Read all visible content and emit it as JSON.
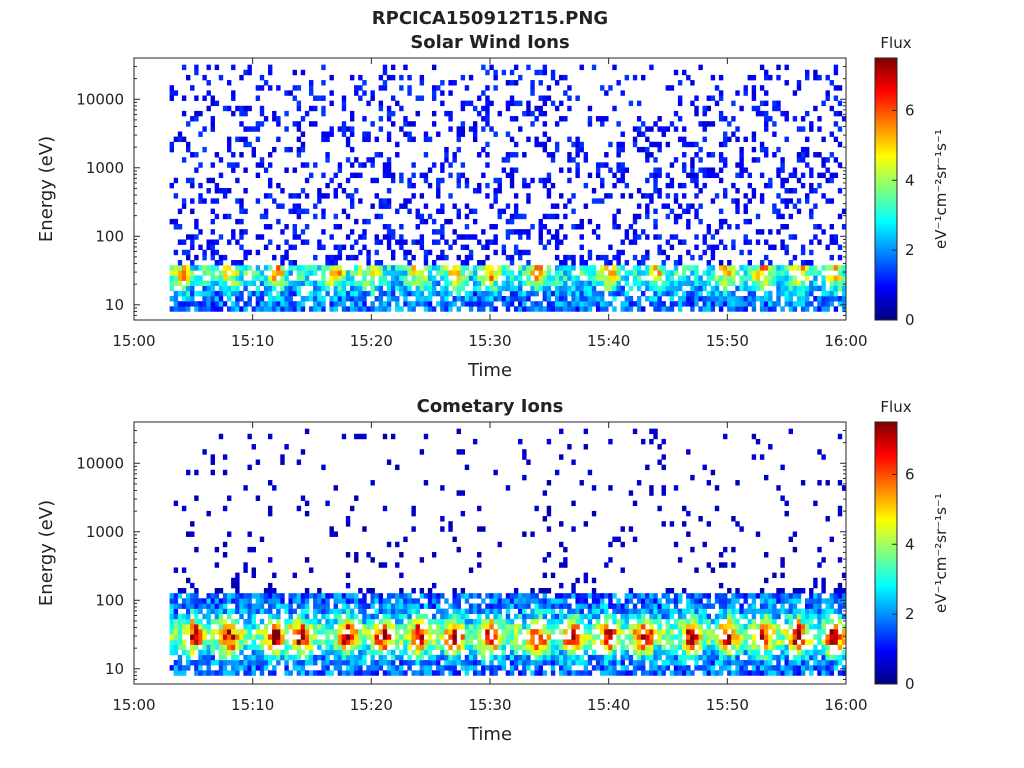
{
  "figure": {
    "title": "RPCICA150912T15.PNG"
  },
  "colorbar_colors": [
    "#00007f",
    "#0000ff",
    "#007fff",
    "#00ffff",
    "#7fff7f",
    "#ffff00",
    "#ff7f00",
    "#ff0000",
    "#7f0000"
  ],
  "chart_data": [
    {
      "type": "heatmap",
      "title": "Solar Wind Ions",
      "xlabel": "Time",
      "ylabel": "Energy (eV)",
      "x_ticks": [
        "15:00",
        "15:10",
        "15:20",
        "15:30",
        "15:40",
        "15:50",
        "16:00"
      ],
      "x_range": [
        "15:00",
        "16:00"
      ],
      "data_start": "15:03",
      "y_scale": "log",
      "y_ticks": [
        "10",
        "100",
        "1000",
        "10000"
      ],
      "y_range": [
        6,
        40000
      ],
      "colorbar": {
        "title": "Flux",
        "label": "eV⁻¹cm⁻²sr⁻¹s⁻¹",
        "ticks": [
          "0",
          "2",
          "4",
          "6"
        ],
        "range": [
          0,
          7.5
        ]
      },
      "features": {
        "low_energy_band_eV": [
          8,
          40
        ],
        "peak_flux_near_30eV": 4.5,
        "hot_times": [
          "15:04",
          "15:08",
          "15:12",
          "15:17",
          "15:20",
          "15:24",
          "15:27",
          "15:30",
          "15:34",
          "15:40",
          "15:44",
          "15:50",
          "15:53",
          "15:56",
          "15:59"
        ],
        "sparse_high_energy_flux": 1.0
      }
    },
    {
      "type": "heatmap",
      "title": "Cometary Ions",
      "xlabel": "Time",
      "ylabel": "Energy (eV)",
      "x_ticks": [
        "15:00",
        "15:10",
        "15:20",
        "15:30",
        "15:40",
        "15:50",
        "16:00"
      ],
      "x_range": [
        "15:00",
        "16:00"
      ],
      "data_start": "15:03",
      "y_scale": "log",
      "y_ticks": [
        "10",
        "100",
        "1000",
        "10000"
      ],
      "y_range": [
        6,
        40000
      ],
      "colorbar": {
        "title": "Flux",
        "label": "eV⁻¹cm⁻²sr⁻¹s⁻¹",
        "ticks": [
          "0",
          "2",
          "4",
          "6"
        ],
        "range": [
          0,
          7.5
        ]
      },
      "features": {
        "low_energy_band_eV": [
          8,
          120
        ],
        "peak_flux_near_30eV": 7,
        "hot_times": [
          "15:05",
          "15:08",
          "15:12",
          "15:14",
          "15:18",
          "15:21",
          "15:24",
          "15:27",
          "15:30",
          "15:34",
          "15:37",
          "15:40",
          "15:43",
          "15:47",
          "15:50",
          "15:53",
          "15:56",
          "15:59"
        ],
        "sparse_high_energy_flux": 0.5
      }
    }
  ]
}
